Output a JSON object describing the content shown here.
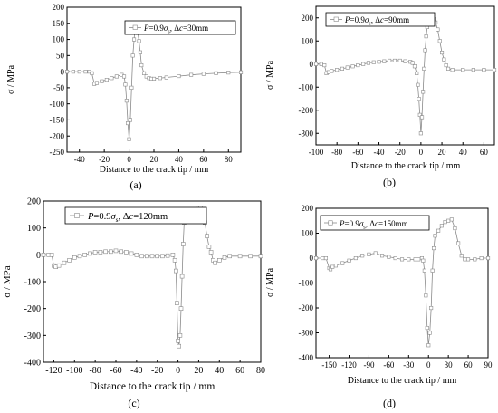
{
  "chart_data": [
    {
      "type": "line",
      "panel_label": "(a)",
      "xlabel": "Distance to the crack tip / mm",
      "ylabel": "σ / MPa",
      "xlim": [
        -50,
        90
      ],
      "ylim": [
        -250,
        200
      ],
      "xticks": [
        -40,
        -20,
        0,
        20,
        40,
        60,
        80
      ],
      "yticks": [
        -250,
        -200,
        -150,
        -100,
        -50,
        0,
        50,
        100,
        150,
        200
      ],
      "legend_location": "top-right",
      "series": [
        {
          "name": "P=0.9σ_s, Δc=30mm",
          "x": [
            -50,
            -45,
            -40,
            -35,
            -32,
            -30,
            -28,
            -26,
            -22,
            -18,
            -14,
            -10,
            -6,
            -4,
            -3,
            -2,
            -1,
            0,
            1,
            2,
            3,
            4,
            5,
            6,
            7,
            8,
            9,
            10,
            12,
            14,
            16,
            18,
            20,
            25,
            30,
            40,
            50,
            60,
            70,
            80,
            90
          ],
          "y": [
            0,
            0,
            0,
            0,
            0,
            -5,
            -38,
            -35,
            -30,
            -25,
            -20,
            -15,
            -10,
            -15,
            -40,
            -90,
            -160,
            -210,
            -150,
            -50,
            50,
            100,
            150,
            140,
            120,
            95,
            60,
            20,
            -5,
            -15,
            -20,
            -22,
            -22,
            -20,
            -18,
            -14,
            -10,
            -7,
            -5,
            -3,
            -2
          ]
        }
      ]
    },
    {
      "type": "line",
      "panel_label": "(b)",
      "xlabel": "Distance to the crack tip / mm",
      "ylabel": "σ / MPa",
      "xlim": [
        -100,
        70
      ],
      "ylim": [
        -350,
        250
      ],
      "xticks": [
        -100,
        -80,
        -60,
        -40,
        -20,
        0,
        20,
        40,
        60
      ],
      "yticks": [
        -300,
        -200,
        -100,
        0,
        100,
        200
      ],
      "legend_location": "top-left",
      "series": [
        {
          "name": "P=0.9σ_s, Δc=90mm",
          "x": [
            -100,
            -95,
            -92,
            -90,
            -88,
            -85,
            -80,
            -75,
            -70,
            -65,
            -60,
            -55,
            -50,
            -45,
            -40,
            -35,
            -30,
            -25,
            -20,
            -15,
            -10,
            -8,
            -6,
            -4,
            -3,
            -2,
            -1,
            0,
            1,
            2,
            3,
            4,
            5,
            6,
            8,
            10,
            12,
            14,
            16,
            18,
            20,
            22,
            24,
            26,
            30,
            40,
            50,
            60,
            70
          ],
          "y": [
            0,
            0,
            -5,
            -40,
            -35,
            -30,
            -25,
            -20,
            -15,
            -10,
            -5,
            0,
            5,
            8,
            10,
            12,
            15,
            15,
            15,
            12,
            10,
            5,
            -10,
            -40,
            -90,
            -150,
            -220,
            -300,
            -230,
            -120,
            -20,
            60,
            120,
            160,
            180,
            190,
            195,
            180,
            150,
            100,
            50,
            20,
            -5,
            -20,
            -25,
            -25,
            -25,
            -25,
            -25
          ]
        }
      ]
    },
    {
      "type": "line",
      "panel_label": "(c)",
      "xlabel": "Distance to the crack tip / mm",
      "ylabel": "σ / MPa",
      "xlim": [
        -130,
        80
      ],
      "ylim": [
        -400,
        200
      ],
      "xticks": [
        -120,
        -100,
        -80,
        -60,
        -40,
        -20,
        0,
        20,
        40,
        60,
        80
      ],
      "yticks": [
        -400,
        -300,
        -200,
        -100,
        0,
        100,
        200
      ],
      "legend_location": "top-left",
      "series": [
        {
          "name": "P=0.9σ_s, Δc=120mm",
          "x": [
            -130,
            -125,
            -122,
            -120,
            -118,
            -115,
            -110,
            -105,
            -100,
            -95,
            -90,
            -85,
            -80,
            -75,
            -70,
            -65,
            -60,
            -55,
            -50,
            -45,
            -40,
            -35,
            -30,
            -25,
            -20,
            -15,
            -10,
            -5,
            -3,
            -2,
            -1,
            0,
            1,
            2,
            3,
            4,
            5,
            6,
            8,
            10,
            12,
            14,
            16,
            18,
            20,
            22,
            24,
            26,
            28,
            30,
            32,
            34,
            36,
            40,
            45,
            50,
            60,
            70,
            80
          ],
          "y": [
            0,
            0,
            0,
            -40,
            -45,
            -40,
            -30,
            -20,
            -10,
            -5,
            0,
            5,
            10,
            10,
            12,
            12,
            15,
            12,
            10,
            5,
            0,
            -5,
            -5,
            -5,
            -5,
            -5,
            -3,
            0,
            -20,
            -60,
            -180,
            -320,
            -340,
            -300,
            -200,
            -80,
            40,
            120,
            140,
            150,
            150,
            155,
            160,
            165,
            170,
            175,
            160,
            120,
            70,
            30,
            10,
            -20,
            -30,
            -20,
            -10,
            -5,
            -5,
            -5,
            -5
          ]
        }
      ]
    },
    {
      "type": "line",
      "panel_label": "(d)",
      "xlabel": "Distance to the crack tip / mm",
      "ylabel": "σ / MPa",
      "xlim": [
        -170,
        90
      ],
      "ylim": [
        -400,
        200
      ],
      "xticks": [
        -150,
        -120,
        -90,
        -60,
        -30,
        0,
        30,
        60,
        90
      ],
      "yticks": [
        -400,
        -300,
        -200,
        -100,
        0,
        100,
        200
      ],
      "legend_location": "top-left",
      "series": [
        {
          "name": "P=0.9σ_s, Δc=150mm",
          "x": [
            -170,
            -160,
            -155,
            -150,
            -148,
            -145,
            -140,
            -130,
            -120,
            -110,
            -100,
            -90,
            -80,
            -70,
            -60,
            -50,
            -40,
            -30,
            -20,
            -15,
            -10,
            -8,
            -6,
            -4,
            -2,
            0,
            2,
            4,
            6,
            8,
            10,
            15,
            20,
            25,
            30,
            35,
            40,
            45,
            50,
            55,
            60,
            70,
            80,
            90
          ],
          "y": [
            0,
            0,
            0,
            -40,
            -45,
            -35,
            -30,
            -20,
            -10,
            0,
            10,
            15,
            20,
            10,
            5,
            0,
            -5,
            -5,
            -5,
            -5,
            0,
            -10,
            -50,
            -150,
            -280,
            -350,
            -300,
            -200,
            -50,
            40,
            90,
            110,
            130,
            145,
            150,
            155,
            120,
            60,
            10,
            -5,
            -5,
            -5,
            0,
            0
          ]
        }
      ]
    }
  ]
}
